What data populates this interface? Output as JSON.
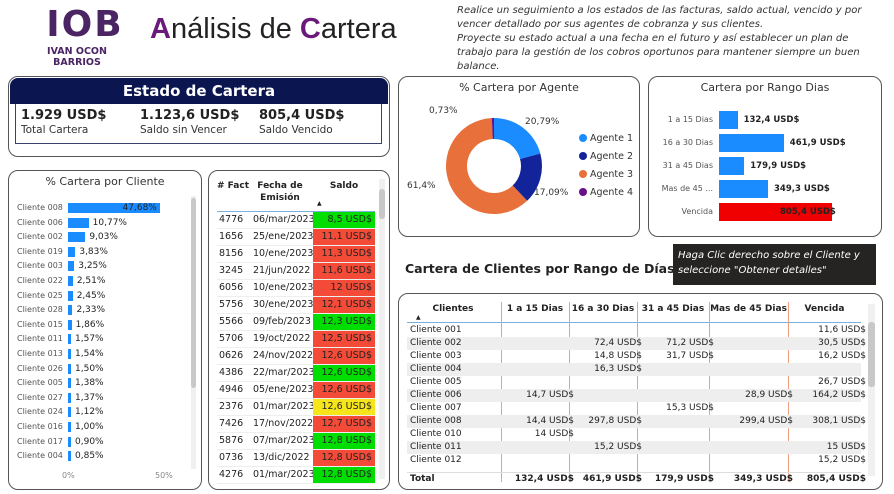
{
  "logo": {
    "mark": "IOB",
    "name": "IVAN OCON BARRIOS"
  },
  "title": {
    "a": "A",
    "b": "nálisis de ",
    "c": "C",
    "d": "artera"
  },
  "description": [
    "Realice un seguimiento a los estados de las facturas, saldo actual, vencido y por vencer detallado por sus agentes de cobranza y sus clientes.",
    "Proyecte su estado actual a una fecha en el futuro y así establecer un plan de trabajo para la gestión de los cobros oportunos para mantener siempre un buen balance."
  ],
  "estado": {
    "title": "Estado de Cartera",
    "kpis": [
      {
        "value": "1.929 USD$",
        "label": "Total Cartera"
      },
      {
        "value": "1.123,6 USD$",
        "label": "Saldo sin Vencer"
      },
      {
        "value": "805,4 USD$",
        "label": "Saldo Vencido"
      }
    ]
  },
  "colors": {
    "bar": "#1a8cff",
    "red": "#f44b38",
    "green": "#00dd00",
    "yellow": "#f7e51c",
    "navy": "#0b1650",
    "agents": [
      "#1a8cff",
      "#13239a",
      "#e8703a",
      "#6a0f8a"
    ]
  },
  "chart_data": [
    {
      "type": "bar",
      "title": "% Cartera por Cliente",
      "categories": [
        "Cliente 008",
        "Cliente 006",
        "Cliente 002",
        "Cliente 019",
        "Cliente 003",
        "Cliente 022",
        "Cliente 025",
        "Cliente 028",
        "Cliente 015",
        "Cliente 011",
        "Cliente 013",
        "Cliente 026",
        "Cliente 005",
        "Cliente 027",
        "Cliente 024",
        "Cliente 016",
        "Cliente 017",
        "Cliente 004"
      ],
      "values": [
        47.68,
        10.77,
        9.03,
        3.83,
        3.25,
        2.51,
        2.45,
        2.33,
        1.86,
        1.57,
        1.54,
        1.5,
        1.38,
        1.37,
        1.12,
        1.0,
        0.9,
        0.85
      ],
      "labels": [
        "47,68%",
        "10,77%",
        "9,03%",
        "3,83%",
        "3,25%",
        "2,51%",
        "2,45%",
        "2,33%",
        "1,86%",
        "1,57%",
        "1,54%",
        "1,50%",
        "1,38%",
        "1,37%",
        "1,12%",
        "1,00%",
        "0,90%",
        "0,85%"
      ],
      "xticks": [
        "0%",
        "50%"
      ],
      "xlim": [
        0,
        50
      ]
    },
    {
      "type": "pie",
      "title": "% Cartera por Agente",
      "categories": [
        "Agente 1",
        "Agente 2",
        "Agente 3",
        "Agente 4"
      ],
      "values": [
        20.79,
        17.09,
        61.4,
        0.73
      ],
      "labels": [
        "20,79%",
        "17,09%",
        "61,4%",
        "0,73%"
      ],
      "legend": "right"
    },
    {
      "type": "bar",
      "title": "Cartera por Rango Dias",
      "categories": [
        "1 a 15 Dias",
        "16 a 30 Dias",
        "31 a 45 Dias",
        "Mas de 45 ...",
        "Vencida"
      ],
      "values": [
        132.4,
        461.9,
        179.9,
        349.3,
        805.4
      ],
      "labels": [
        "132,4 USD$",
        "461,9 USD$",
        "179,9 USD$",
        "349,3 USD$",
        "805,4 USD$"
      ]
    }
  ],
  "facturas": {
    "headers": [
      "# Fact",
      "Fecha de Emisión",
      "Saldo"
    ],
    "rows": [
      [
        "4776",
        "06/mar/2023",
        "8,5 USD$",
        "green"
      ],
      [
        "1656",
        "25/ene/2023",
        "11,1 USD$",
        "red"
      ],
      [
        "8156",
        "10/ene/2023",
        "11,3 USD$",
        "red"
      ],
      [
        "3245",
        "21/jun/2022",
        "11,6 USD$",
        "red"
      ],
      [
        "6056",
        "10/ene/2023",
        "12 USD$",
        "red"
      ],
      [
        "5756",
        "30/ene/2023",
        "12,1 USD$",
        "red"
      ],
      [
        "5566",
        "09/feb/2023",
        "12,3 USD$",
        "green"
      ],
      [
        "5706",
        "19/oct/2022",
        "12,5 USD$",
        "red"
      ],
      [
        "0626",
        "24/nov/2022",
        "12,6 USD$",
        "red"
      ],
      [
        "4386",
        "22/mar/2023",
        "12,6 USD$",
        "green"
      ],
      [
        "4946",
        "05/ene/2023",
        "12,6 USD$",
        "red"
      ],
      [
        "2376",
        "01/mar/2023",
        "12,6 USD$",
        "yellow"
      ],
      [
        "7426",
        "17/nov/2022",
        "12,7 USD$",
        "red"
      ],
      [
        "5876",
        "07/mar/2023",
        "12,8 USD$",
        "green"
      ],
      [
        "0736",
        "13/dic/2022",
        "12,8 USD$",
        "red"
      ],
      [
        "4276",
        "01/mar/2023",
        "12,8 USD$",
        "green"
      ]
    ]
  },
  "note": "Haga Clic derecho sobre el Cliente y seleccione \"Obtener detalles\"",
  "matrix": {
    "title": "Cartera de Clientes por Rango de Días",
    "headers": [
      "Clientes",
      "1 a 15 Dias",
      "16 a 30 Dias",
      "31 a 45 Dias",
      "Mas de 45 Dias",
      "Vencida"
    ],
    "rows": [
      [
        "Cliente 001",
        "",
        "",
        "",
        "",
        "11,6 USD$"
      ],
      [
        "Cliente 002",
        "",
        "72,4 USD$",
        "71,2 USD$",
        "",
        "30,5 USD$"
      ],
      [
        "Cliente 003",
        "",
        "14,8 USD$",
        "31,7 USD$",
        "",
        "16,2 USD$"
      ],
      [
        "Cliente 004",
        "",
        "16,3 USD$",
        "",
        "",
        ""
      ],
      [
        "Cliente 005",
        "",
        "",
        "",
        "",
        "26,7 USD$"
      ],
      [
        "Cliente 006",
        "14,7 USD$",
        "",
        "",
        "28,9 USD$",
        "164,2 USD$"
      ],
      [
        "Cliente 007",
        "",
        "",
        "15,3 USD$",
        "",
        ""
      ],
      [
        "Cliente 008",
        "14,4 USD$",
        "297,8 USD$",
        "",
        "299,4 USD$",
        "308,1 USD$"
      ],
      [
        "Cliente 010",
        "14 USD$",
        "",
        "",
        "",
        ""
      ],
      [
        "Cliente 011",
        "",
        "15,2 USD$",
        "",
        "",
        "15 USD$"
      ],
      [
        "Cliente 012",
        "",
        "",
        "",
        "",
        "15,2 USD$"
      ]
    ],
    "total": [
      "Total",
      "132,4 USD$",
      "461,9 USD$",
      "179,9 USD$",
      "349,3 USD$",
      "805,4 USD$"
    ]
  }
}
